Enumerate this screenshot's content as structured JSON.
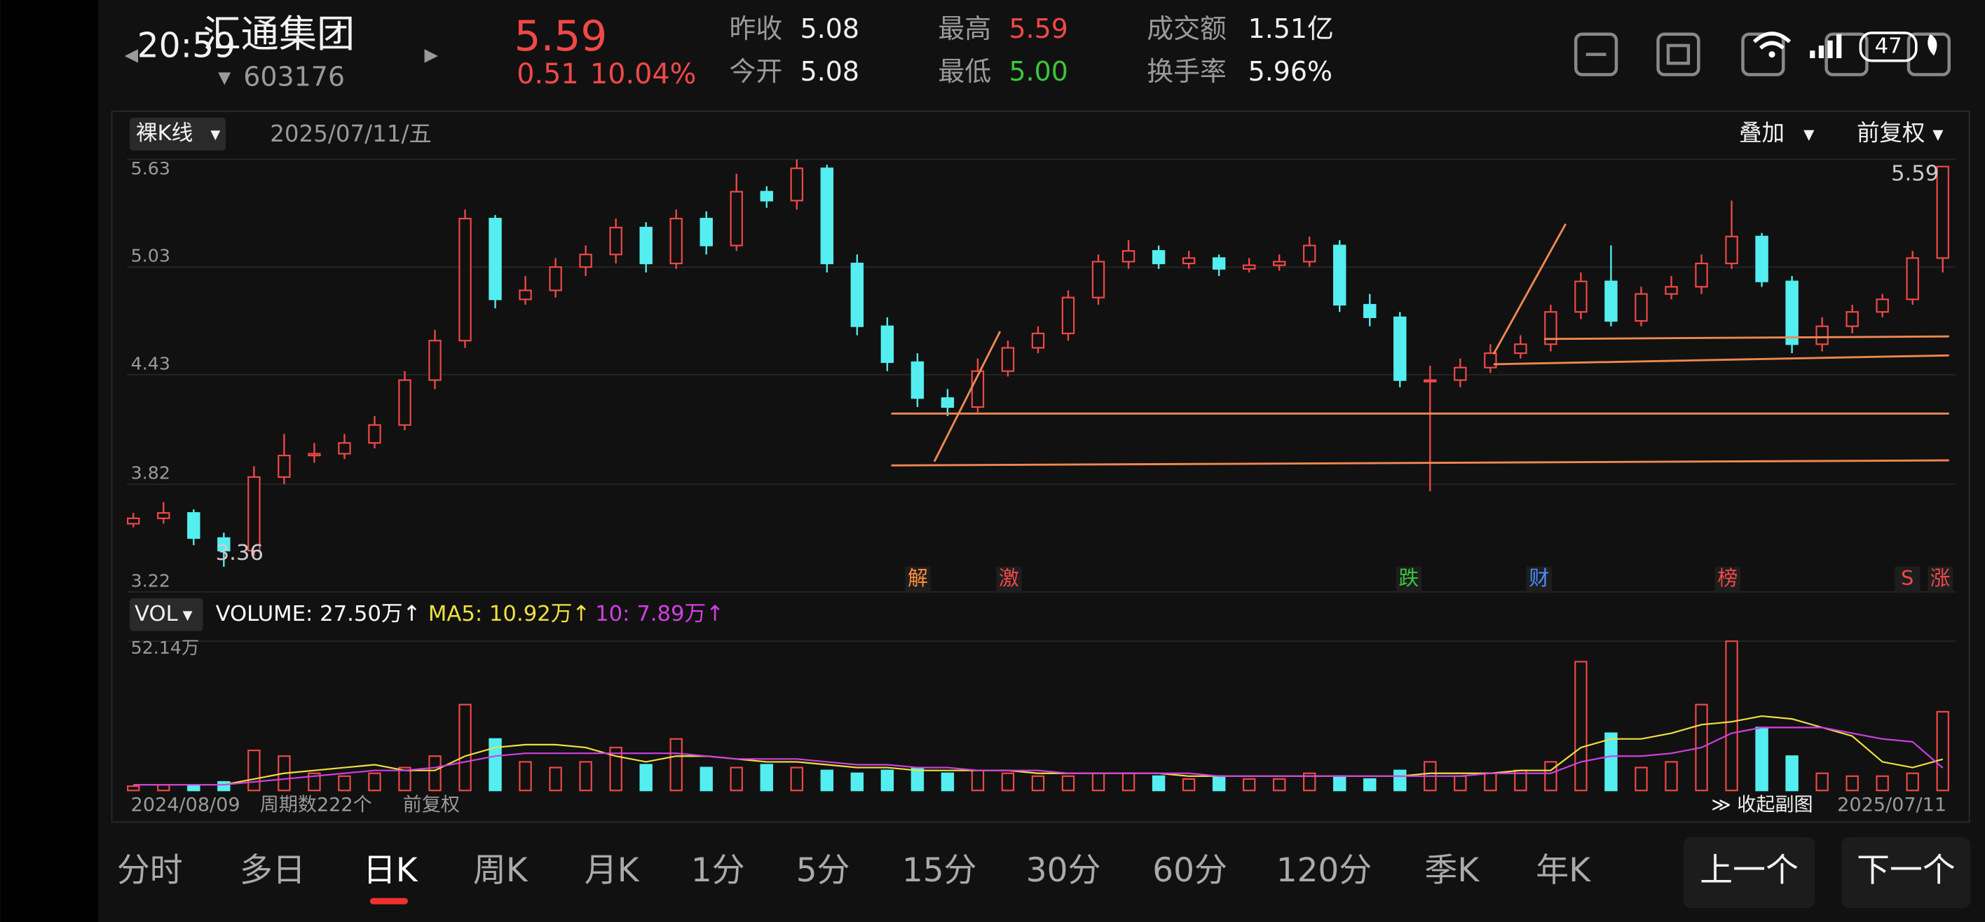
{
  "status_bar": {
    "time": "20:59",
    "battery": "47"
  },
  "header": {
    "name": "汇通集团",
    "code": "603176",
    "price": "5.59",
    "change": "0.51",
    "change_pct": "10.04%",
    "stats": [
      {
        "label": "昨收",
        "value": "5.08"
      },
      {
        "label": "今开",
        "value": "5.08"
      },
      {
        "label": "最高",
        "value": "5.59"
      },
      {
        "label": "最低",
        "value": "5.00"
      },
      {
        "label": "成交额",
        "value": "1.51亿"
      },
      {
        "label": "换手率",
        "value": "5.96%"
      }
    ]
  },
  "toolbar": {
    "mode": "裸K线",
    "date": "2025/07/11/五",
    "overlay": "叠加",
    "adjust": "前复权"
  },
  "chart_data": [
    {
      "type": "candlestick",
      "ylim": [
        3.22,
        5.63
      ],
      "yticks": [
        5.63,
        5.03,
        4.43,
        3.82,
        3.22
      ],
      "grid": true,
      "up_color": "#f04848",
      "down_color": "#54eef0",
      "max_label": "5.59",
      "min_label": "3.36",
      "open": [
        3.6,
        3.63,
        3.66,
        3.52,
        3.45,
        3.86,
        3.98,
        3.99,
        4.05,
        4.15,
        4.4,
        4.62,
        5.3,
        4.85,
        4.9,
        5.03,
        5.1,
        5.25,
        5.05,
        5.3,
        5.15,
        5.45,
        5.4,
        5.58,
        5.05,
        4.7,
        4.5,
        4.3,
        4.25,
        4.45,
        4.58,
        4.66,
        4.86,
        5.06,
        5.12,
        5.05,
        5.08,
        5.02,
        5.04,
        5.06,
        5.15,
        4.82,
        4.75,
        4.4,
        4.4,
        4.47,
        4.55,
        4.6,
        4.78,
        4.95,
        4.73,
        4.88,
        4.92,
        5.05,
        5.2,
        4.95,
        4.6,
        4.7,
        4.78,
        4.85,
        5.08
      ],
      "high": [
        3.66,
        3.72,
        3.68,
        3.55,
        3.92,
        4.1,
        4.05,
        4.1,
        4.2,
        4.45,
        4.68,
        5.35,
        5.32,
        4.98,
        5.08,
        5.15,
        5.3,
        5.28,
        5.35,
        5.34,
        5.55,
        5.48,
        5.63,
        5.6,
        5.1,
        4.75,
        4.55,
        4.35,
        4.52,
        4.62,
        4.7,
        4.9,
        5.1,
        5.18,
        5.15,
        5.12,
        5.1,
        5.08,
        5.1,
        5.2,
        5.18,
        4.88,
        4.78,
        4.48,
        4.52,
        4.6,
        4.65,
        4.82,
        5.0,
        5.15,
        4.92,
        4.98,
        5.1,
        5.4,
        5.22,
        4.98,
        4.75,
        4.82,
        4.88,
        5.12,
        5.59
      ],
      "low": [
        3.58,
        3.6,
        3.48,
        3.36,
        3.42,
        3.82,
        3.94,
        3.96,
        4.02,
        4.12,
        4.35,
        4.58,
        4.8,
        4.82,
        4.86,
        4.98,
        5.05,
        5.0,
        5.02,
        5.1,
        5.12,
        5.36,
        5.35,
        5.0,
        4.65,
        4.45,
        4.25,
        4.2,
        4.22,
        4.42,
        4.55,
        4.62,
        4.82,
        5.02,
        5.02,
        5.02,
        4.98,
        5.0,
        5.01,
        5.03,
        4.78,
        4.7,
        4.36,
        3.78,
        4.36,
        4.44,
        4.52,
        4.56,
        4.74,
        4.7,
        4.7,
        4.85,
        4.88,
        5.02,
        4.92,
        4.55,
        4.56,
        4.66,
        4.75,
        4.82,
        5.0
      ],
      "close": [
        3.63,
        3.66,
        3.52,
        3.45,
        3.86,
        3.98,
        3.99,
        4.05,
        4.15,
        4.4,
        4.62,
        5.3,
        4.85,
        4.9,
        5.03,
        5.1,
        5.25,
        5.05,
        5.3,
        5.15,
        5.45,
        5.4,
        5.58,
        5.05,
        4.7,
        4.5,
        4.3,
        4.25,
        4.45,
        4.58,
        4.66,
        4.86,
        5.06,
        5.12,
        5.05,
        5.08,
        5.02,
        5.04,
        5.06,
        5.15,
        4.82,
        4.75,
        4.4,
        4.4,
        4.47,
        4.55,
        4.6,
        4.78,
        4.95,
        4.73,
        4.88,
        4.92,
        5.05,
        5.2,
        4.95,
        4.6,
        4.7,
        4.78,
        4.85,
        5.08,
        5.59
      ],
      "event_markers": [
        {
          "label": "解",
          "color": "#ff8c3a"
        },
        {
          "label": "激",
          "color": "#f04848"
        },
        {
          "label": "跌",
          "color": "#3cc43c"
        },
        {
          "label": "财",
          "color": "#4a8cff"
        },
        {
          "label": "榜",
          "color": "#f04848"
        },
        {
          "label": "S",
          "color": "#f04848"
        },
        {
          "label": "涨",
          "color": "#f04848"
        }
      ]
    },
    {
      "type": "bar",
      "mode": "VOL",
      "legend": [
        "VOLUME: 27.50万↑",
        "MA5: 10.92万↑",
        "10: 7.89万↑"
      ],
      "ylim": [
        0,
        52.14
      ],
      "yticks": [
        {
          "value": 52.14,
          "label": "52.14万"
        }
      ],
      "categories": [
        "2024/08/09",
        null,
        null,
        null,
        null,
        null,
        null,
        null,
        null,
        null,
        null,
        null,
        null,
        null,
        null,
        null,
        null,
        null,
        null,
        null,
        null,
        null,
        null,
        null,
        null,
        null,
        null,
        null,
        null,
        null,
        null,
        null,
        null,
        null,
        null,
        null,
        null,
        null,
        null,
        null,
        null,
        null,
        null,
        null,
        null,
        null,
        null,
        null,
        null,
        null,
        null,
        null,
        null,
        null,
        null,
        null,
        null,
        null,
        null,
        null,
        "2025/07/11"
      ],
      "values": [
        1.5,
        2,
        2,
        3,
        14,
        12,
        6,
        5,
        6,
        8,
        12,
        30,
        18,
        10,
        8,
        10,
        15,
        9,
        18,
        8,
        8,
        9,
        8,
        7,
        6,
        7,
        8,
        6,
        7,
        6,
        5,
        5,
        6,
        6,
        5,
        4,
        5,
        4,
        4,
        6,
        5,
        4,
        7,
        10,
        5,
        6,
        7,
        10,
        45,
        20,
        8,
        10,
        30,
        52.14,
        22,
        12,
        6,
        5,
        5,
        6,
        27.5
      ],
      "series": [
        {
          "name": "MA5",
          "color": "#f0e040",
          "values": [
            2,
            2,
            2,
            2,
            4,
            6,
            7,
            8,
            9,
            7,
            7,
            12,
            15,
            16,
            16,
            15,
            12,
            10,
            12,
            12,
            11,
            10,
            10,
            9,
            8,
            8,
            7,
            7,
            7,
            7,
            6,
            6,
            6,
            6,
            6,
            5,
            5,
            5,
            5,
            5,
            5,
            5,
            5,
            6,
            6,
            6,
            7,
            7,
            15,
            18,
            18,
            20,
            23,
            24,
            26,
            25,
            22,
            19,
            10,
            8,
            10.92
          ]
        },
        {
          "name": "10",
          "color": "#d040e0",
          "values": [
            2,
            2,
            2,
            2,
            3,
            4,
            5,
            6,
            7,
            7,
            8,
            10,
            12,
            13,
            13,
            13,
            13,
            13,
            13,
            12,
            11,
            11,
            11,
            10,
            9,
            9,
            8,
            8,
            7,
            7,
            7,
            6,
            6,
            6,
            6,
            6,
            5,
            5,
            5,
            5,
            5,
            5,
            5,
            5,
            5,
            6,
            6,
            6,
            10,
            12,
            12,
            13,
            15,
            20,
            22,
            22,
            22,
            20,
            18,
            17,
            7.89
          ]
        }
      ]
    }
  ],
  "footer": {
    "period": "周期数222个",
    "adjust": "前复权",
    "collapse": "≫ 收起副图"
  },
  "tabs": [
    "分时",
    "多日",
    "日K",
    "周K",
    "月K",
    "1分",
    "5分",
    "15分",
    "30分",
    "60分",
    "120分",
    "季K",
    "年K"
  ],
  "buttons": [
    "上一个",
    "下一个"
  ]
}
